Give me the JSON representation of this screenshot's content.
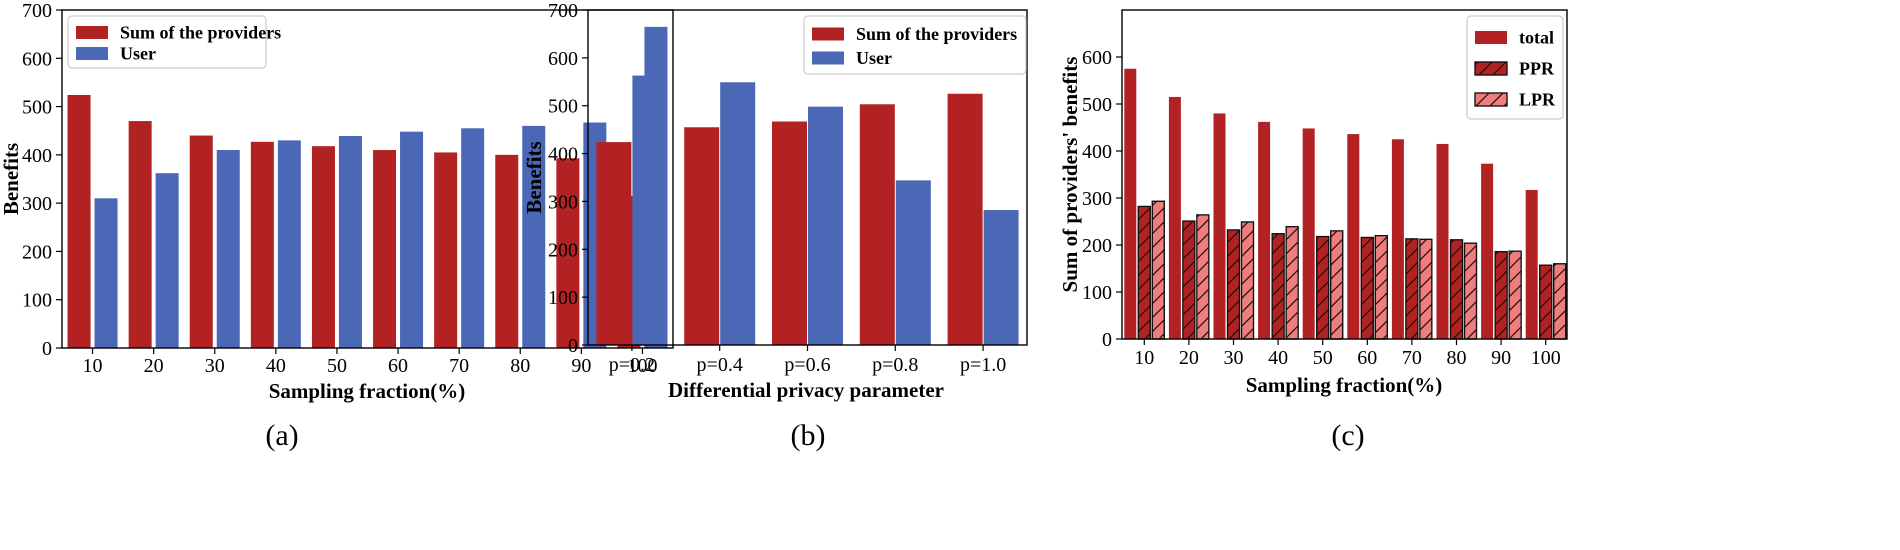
{
  "colors": {
    "red": "#b22222",
    "blue": "#4a68b5",
    "pink": "#ef7d7d",
    "edge": "#111111",
    "legend_border": "#cccccc"
  },
  "chart_data": [
    {
      "type": "bar",
      "panel_label": "(a)",
      "categories": [
        "10",
        "20",
        "30",
        "40",
        "50",
        "60",
        "70",
        "80",
        "90",
        "100"
      ],
      "series": [
        {
          "name": "Sum of the providers",
          "color": "red",
          "values": [
            524,
            470,
            440,
            427,
            418,
            410,
            405,
            400,
            393,
            315
          ]
        },
        {
          "name": "User",
          "color": "blue",
          "values": [
            310,
            362,
            410,
            430,
            439,
            448,
            455,
            460,
            467,
            665
          ]
        }
      ],
      "title": "",
      "xlabel": "Sampling fraction(%)",
      "ylabel": "Benefits",
      "ylim": [
        0,
        700
      ],
      "yticks": [
        "0",
        "100",
        "200",
        "300",
        "400",
        "500",
        "600",
        "700"
      ],
      "legend": "top-left"
    },
    {
      "type": "bar",
      "panel_label": "(b)",
      "categories": [
        "p=0.2",
        "p=0.4",
        "p=0.6",
        "p=0.8",
        "p=1.0"
      ],
      "series": [
        {
          "name": "Sum of the providers",
          "color": "red",
          "values": [
            424,
            455,
            467,
            503,
            525
          ]
        },
        {
          "name": "User",
          "color": "blue",
          "values": [
            563,
            549,
            498,
            344,
            282
          ]
        }
      ],
      "title": "",
      "xlabel": "Differential privacy parameter",
      "ylabel": "Benefits",
      "ylim": [
        0,
        700
      ],
      "yticks": [
        "0",
        "100",
        "200",
        "300",
        "400",
        "500",
        "600",
        "700"
      ],
      "legend": "top-right"
    },
    {
      "type": "bar",
      "panel_label": "(c)",
      "categories": [
        "10",
        "20",
        "30",
        "40",
        "50",
        "60",
        "70",
        "80",
        "90",
        "100"
      ],
      "series": [
        {
          "name": "total",
          "color": "red",
          "hatch": false,
          "values": [
            575,
            515,
            480,
            462,
            448,
            436,
            425,
            415,
            373,
            317
          ]
        },
        {
          "name": "PPR",
          "color": "red",
          "hatch": true,
          "values": [
            282,
            251,
            232,
            224,
            218,
            216,
            213,
            211,
            186,
            157
          ]
        },
        {
          "name": "LPR",
          "color": "pink",
          "hatch": true,
          "values": [
            293,
            264,
            249,
            239,
            230,
            220,
            212,
            204,
            187,
            160
          ]
        }
      ],
      "title": "",
      "xlabel": "Sampling fraction(%)",
      "ylabel": "Sum of providers' benefits",
      "ylim": [
        0,
        700
      ],
      "yticks": [
        "0",
        "100",
        "200",
        "300",
        "400",
        "500",
        "600"
      ],
      "legend": "top-right"
    }
  ]
}
